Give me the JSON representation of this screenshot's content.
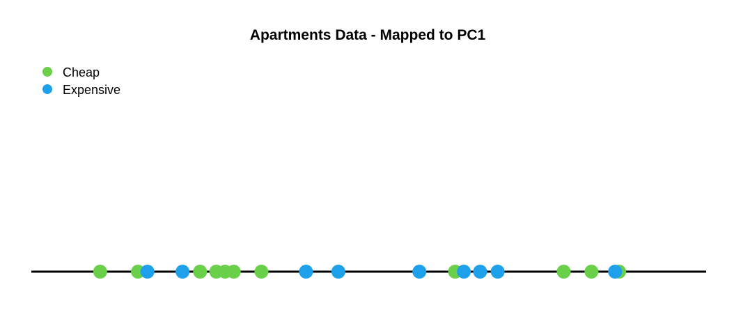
{
  "chart_data": {
    "type": "scatter",
    "title": "Apartments Data - Mapped to PC1",
    "xlabel": "",
    "ylabel": "",
    "xlim": [
      0,
      100
    ],
    "grid": false,
    "legend_placement": "top-left",
    "series": [
      {
        "name": "Cheap",
        "color": "#6ad04a",
        "x": [
          10.2,
          15.8,
          25.0,
          27.4,
          28.7,
          30.0,
          34.1,
          62.8,
          78.9,
          83.0,
          87.1
        ],
        "y": [
          0,
          0,
          0,
          0,
          0,
          0,
          0,
          0,
          0,
          0,
          0
        ]
      },
      {
        "name": "Expensive",
        "color": "#1ea1ea",
        "x": [
          17.2,
          22.4,
          40.7,
          45.5,
          57.5,
          64.1,
          66.5,
          69.1,
          86.5
        ],
        "y": [
          0,
          0,
          0,
          0,
          0,
          0,
          0,
          0,
          0
        ]
      }
    ]
  }
}
